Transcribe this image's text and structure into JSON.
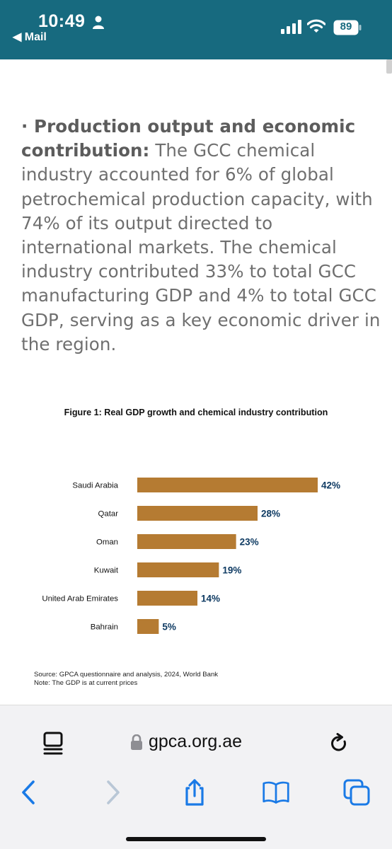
{
  "status_bar": {
    "time": "10:49",
    "back_app": "◀ Mail",
    "battery": "89",
    "icons": [
      "person-icon",
      "cellular-signal-icon",
      "wifi-icon",
      "battery-icon"
    ]
  },
  "article": {
    "bullet": "· ",
    "lead": "Production output and economic contribution:",
    "body": " The GCC chemical industry accounted for 6% of global petrochemical production capacity, with 74% of its output directed to international markets. The chemical industry contributed 33% to total GCC manufacturing GDP and 4% to total GCC GDP, serving as a key economic driver in the region."
  },
  "figure": {
    "title": "Figure 1: Real GDP growth and chemical industry contribution",
    "source_line": "Source: GPCA questionnaire and analysis, 2024, World Bank",
    "note_line": "Note: The GDP is at current prices"
  },
  "chart_data": {
    "type": "bar",
    "orientation": "horizontal",
    "title": "Figure 1: Real GDP growth and chemical industry contribution",
    "categories": [
      "Saudi Arabia",
      "Qatar",
      "Oman",
      "Kuwait",
      "United Arab Emirates",
      "Bahrain"
    ],
    "values": [
      42,
      28,
      23,
      19,
      14,
      5
    ],
    "value_labels": [
      "42%",
      "28%",
      "23%",
      "19%",
      "14%",
      "5%"
    ],
    "unit": "%",
    "xlim": [
      0,
      42
    ],
    "grid": false,
    "legend": "none",
    "bar_color": "#b57b32",
    "label_color": "#0f3b63"
  },
  "browser": {
    "url": "gpca.org.ae",
    "icons": [
      "page-menu-icon",
      "lock-icon",
      "reload-icon",
      "back-arrow-icon",
      "forward-arrow-icon",
      "share-icon",
      "bookmarks-icon",
      "tabs-icon"
    ]
  },
  "colors": {
    "status_bar": "#176a7f",
    "accent_blue": "#1a7ae6"
  }
}
